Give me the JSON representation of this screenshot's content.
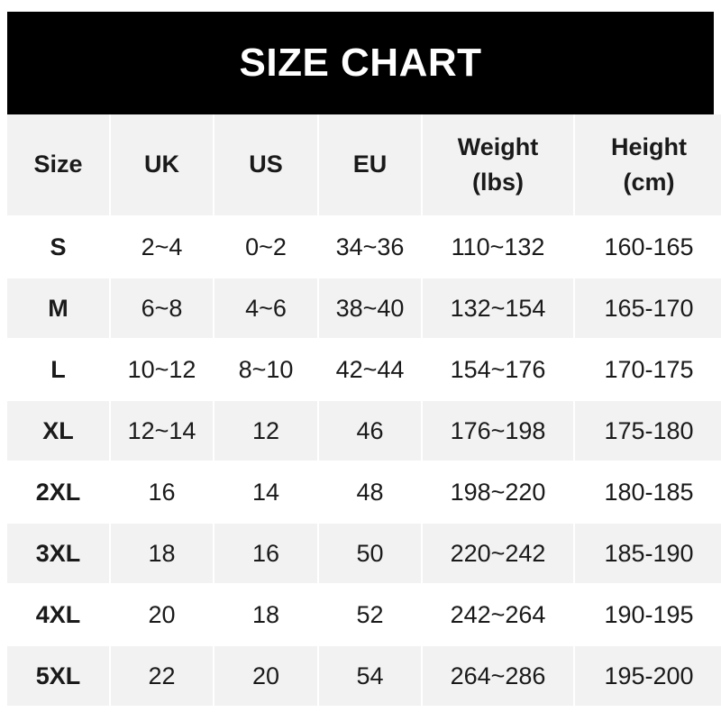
{
  "title": "SIZE CHART",
  "headers": [
    "Size",
    "UK",
    "US",
    "EU",
    "Weight\n(lbs)",
    "Height\n(cm)"
  ],
  "header_lines": [
    [
      "Size"
    ],
    [
      "UK"
    ],
    [
      "US"
    ],
    [
      "EU"
    ],
    [
      "Weight",
      "(lbs)"
    ],
    [
      "Height",
      "(cm)"
    ]
  ],
  "rows": [
    [
      "S",
      "2~4",
      "0~2",
      "34~36",
      "110~132",
      "160-165"
    ],
    [
      "M",
      "6~8",
      "4~6",
      "38~40",
      "132~154",
      "165-170"
    ],
    [
      "L",
      "10~12",
      "8~10",
      "42~44",
      "154~176",
      "170-175"
    ],
    [
      "XL",
      "12~14",
      "12",
      "46",
      "176~198",
      "175-180"
    ],
    [
      "2XL",
      "16",
      "14",
      "48",
      "198~220",
      "180-185"
    ],
    [
      "3XL",
      "18",
      "16",
      "50",
      "220~242",
      "185-190"
    ],
    [
      "4XL",
      "20",
      "18",
      "52",
      "242~264",
      "190-195"
    ],
    [
      "5XL",
      "22",
      "20",
      "54",
      "264~286",
      "195-200"
    ]
  ],
  "colors": {
    "title_bg": "#000000",
    "stripe": "#f2f2f2",
    "text": "#1a1a1a"
  }
}
